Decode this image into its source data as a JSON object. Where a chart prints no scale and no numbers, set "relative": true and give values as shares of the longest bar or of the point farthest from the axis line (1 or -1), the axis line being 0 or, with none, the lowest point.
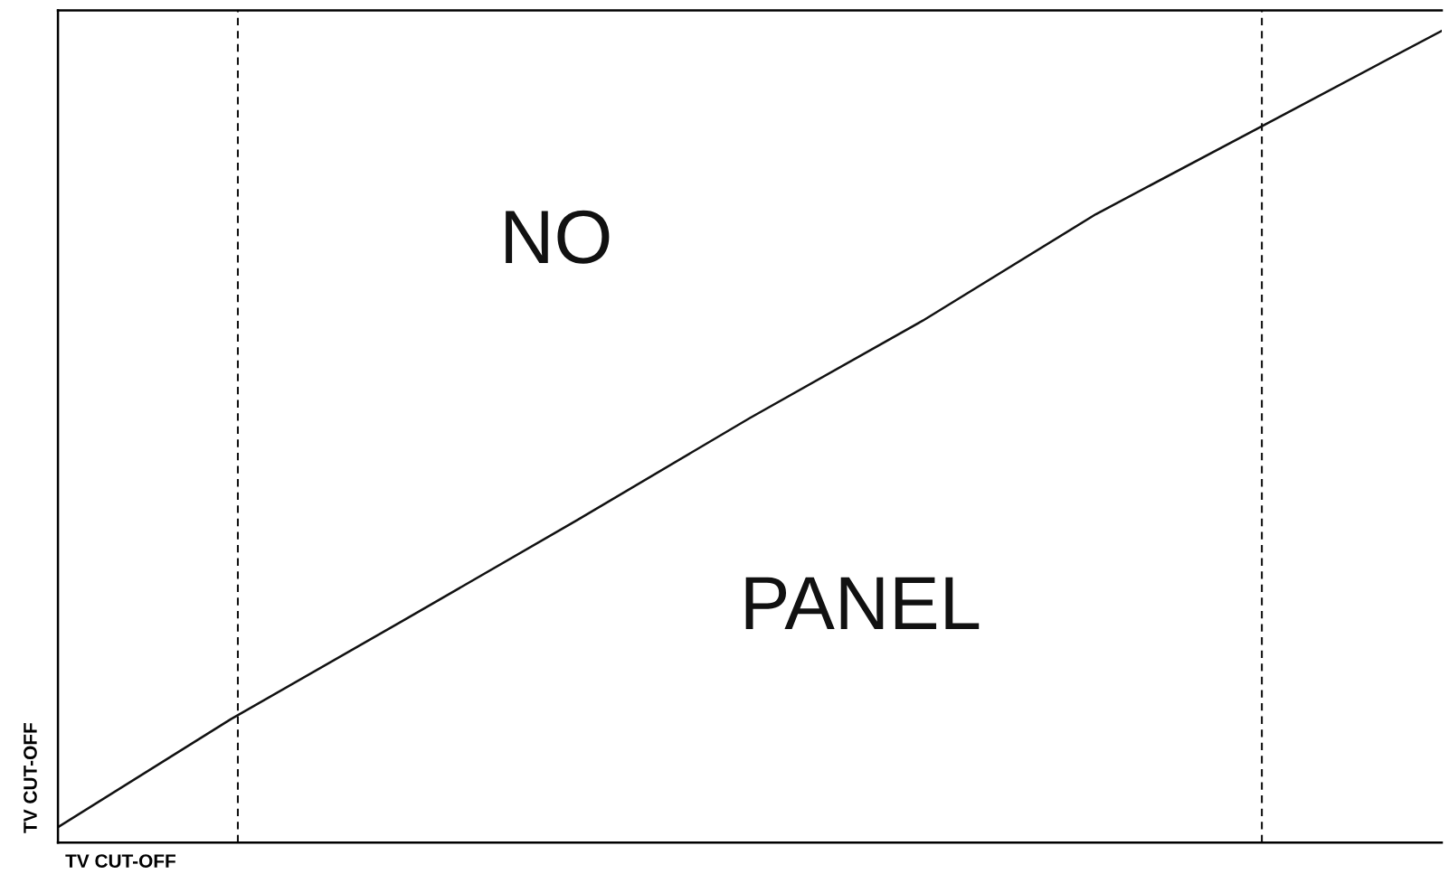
{
  "chart_data": {
    "type": "line",
    "relative": true,
    "xlabel": "TV CUT-OFF",
    "ylabel": "TV CUT-OFF",
    "categories": [
      null,
      null,
      null,
      null,
      null,
      null,
      null,
      null,
      null
    ],
    "series": [
      {
        "color": "#111111",
        "values": [
          0.019,
          0.152,
          0.274,
          0.397,
          0.523,
          0.643,
          0.774,
          0.887,
          1.0
        ]
      }
    ],
    "annotations": [
      "NO",
      "PANEL"
    ],
    "tick_labels": false
  }
}
